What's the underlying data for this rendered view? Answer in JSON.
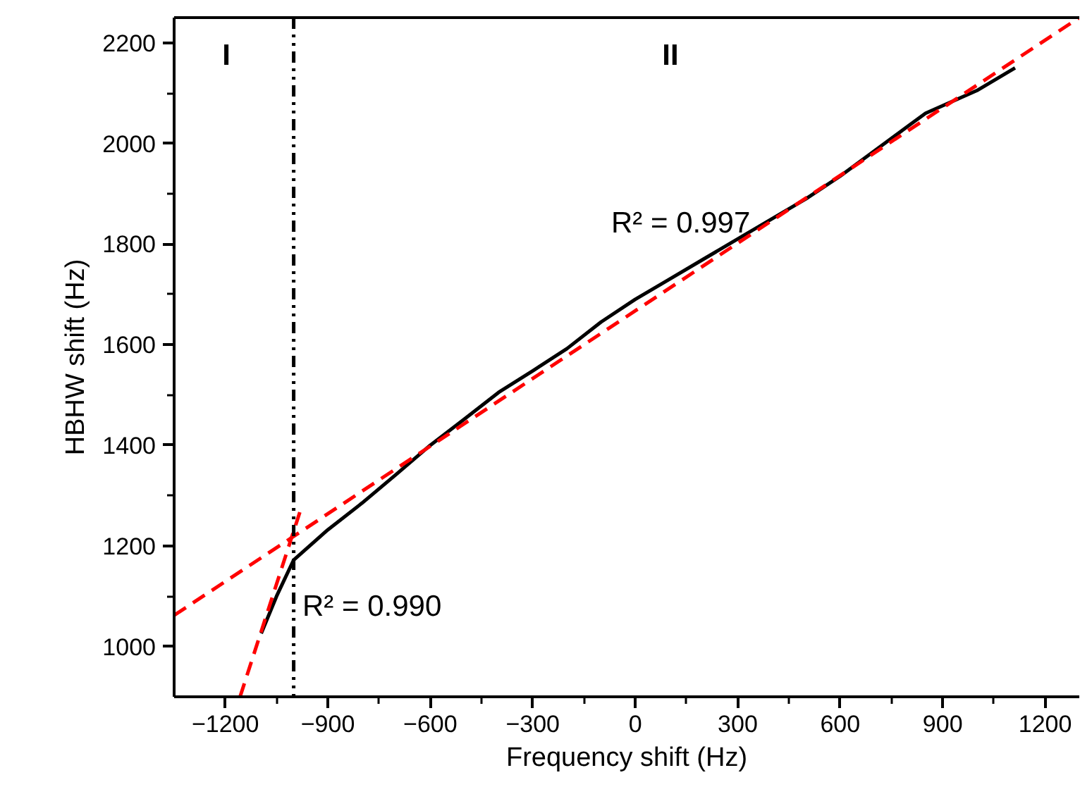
{
  "chart_data": {
    "type": "line",
    "xlabel": "Frequency shift (Hz)",
    "ylabel": "HBHW shift (Hz)",
    "xlim": [
      -1350,
      1300
    ],
    "xticks": [
      -1200,
      -900,
      -600,
      -300,
      0,
      300,
      600,
      900,
      1200
    ],
    "ylim": [
      900,
      2250
    ],
    "yticks": [
      1000,
      1200,
      1400,
      1600,
      1800,
      2000,
      2200
    ],
    "grid": false,
    "marker": "none",
    "series": [
      {
        "color": "#000000",
        "line_style": "solid",
        "x": [
          -1095,
          -1050,
          -1000,
          -900,
          -800,
          -700,
          -600,
          -500,
          -400,
          -300,
          -200,
          -100,
          0,
          100,
          200,
          300,
          400,
          500,
          600,
          700,
          800,
          850,
          900,
          1000,
          1112
        ],
        "values": [
          1026,
          1100,
          1172,
          1232,
          1285,
          1342,
          1400,
          1452,
          1505,
          1548,
          1592,
          1645,
          1690,
          1730,
          1770,
          1810,
          1850,
          1890,
          1935,
          1985,
          2035,
          2060,
          2075,
          2105,
          2150
        ]
      },
      {
        "color": "#ff0000",
        "line_style": "dashed",
        "x": [
          -1350,
          1300
        ],
        "values": [
          1062,
          2250
        ]
      },
      {
        "color": "#ff0000",
        "line_style": "dashed",
        "x": [
          -1157,
          -982
        ],
        "values": [
          900,
          1267
        ]
      }
    ],
    "ref_lines": [
      {
        "axis": "x",
        "value": -1000,
        "color": "#000000",
        "line_style": "dashdot"
      }
    ],
    "annotations": [
      "I",
      "II",
      "R² = 0.997",
      "R² = 0.990"
    ]
  }
}
